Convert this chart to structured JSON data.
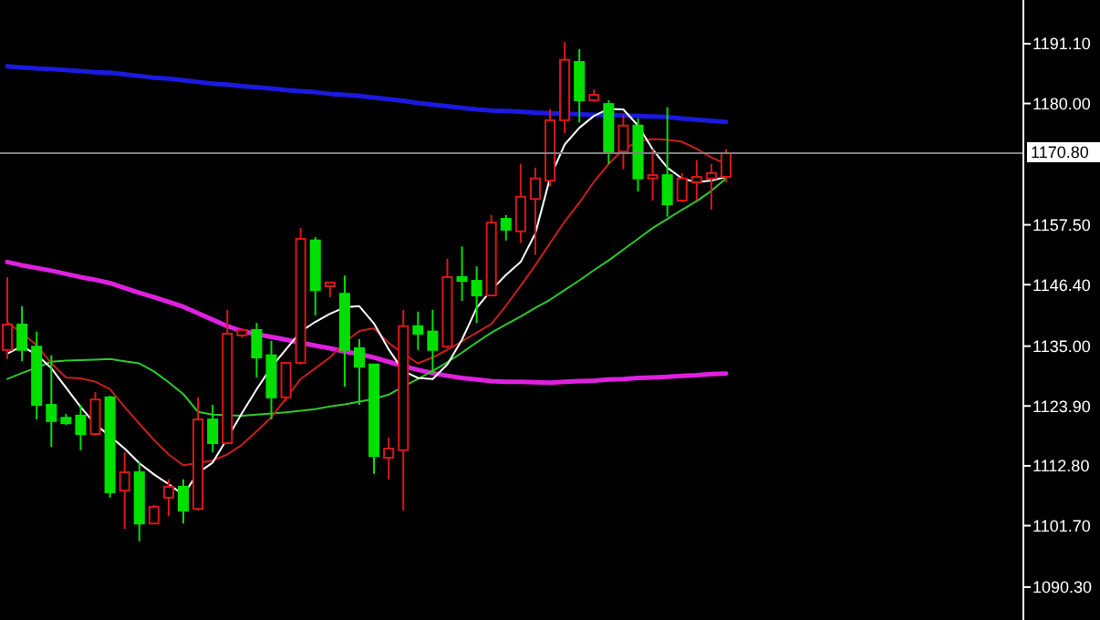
{
  "chart_data": {
    "type": "candlestick",
    "categories": [
      null,
      null,
      null,
      null,
      null,
      null,
      null,
      null,
      null,
      null,
      null,
      null,
      null,
      null,
      null,
      null,
      null,
      null,
      null,
      null,
      null,
      null,
      null,
      null,
      null,
      null,
      null,
      null,
      null,
      null,
      null,
      null,
      null,
      null,
      null,
      null,
      null,
      null,
      null,
      null,
      null,
      null,
      null,
      null,
      null,
      null,
      null,
      null,
      null,
      null
    ],
    "ohlc": [
      [
        1134.3,
        1147.8,
        1132.6,
        1139.0
      ],
      [
        1139.0,
        1142.4,
        1132.2,
        1134.3
      ],
      [
        1134.9,
        1137.7,
        1121.4,
        1124.1
      ],
      [
        1124.1,
        1133.3,
        1116.3,
        1121.1
      ],
      [
        1121.7,
        1122.4,
        1120.4,
        1120.7
      ],
      [
        1122.1,
        1124.1,
        1115.7,
        1118.7
      ],
      [
        1118.7,
        1126.5,
        1118.4,
        1125.1
      ],
      [
        1125.5,
        1125.8,
        1106.9,
        1107.9
      ],
      [
        1108.2,
        1115.3,
        1101.1,
        1111.6
      ],
      [
        1111.6,
        1113.6,
        1098.8,
        1102.1
      ],
      [
        1102.1,
        1105.5,
        1102.1,
        1105.2
      ],
      [
        1106.9,
        1110.3,
        1103.5,
        1108.9
      ],
      [
        1108.9,
        1110.3,
        1102.1,
        1104.5
      ],
      [
        1104.8,
        1125.5,
        1104.5,
        1121.4
      ],
      [
        1121.4,
        1124.1,
        1115.3,
        1117.0
      ],
      [
        1117.0,
        1141.7,
        1117.0,
        1137.3
      ],
      [
        1137.0,
        1138.3,
        1136.6,
        1138.0
      ],
      [
        1138.0,
        1139.3,
        1129.2,
        1132.9
      ],
      [
        1133.3,
        1136.0,
        1121.4,
        1125.5
      ],
      [
        1125.5,
        1131.9,
        1124.8,
        1131.9
      ],
      [
        1131.9,
        1156.9,
        1131.6,
        1154.9
      ],
      [
        1154.6,
        1155.2,
        1140.7,
        1145.4
      ],
      [
        1146.1,
        1146.8,
        1144.1,
        1146.8
      ],
      [
        1144.7,
        1148.1,
        1127.5,
        1134.3
      ],
      [
        1134.6,
        1136.3,
        1124.1,
        1131.2
      ],
      [
        1131.6,
        1131.6,
        1111.3,
        1114.6
      ],
      [
        1114.3,
        1118.0,
        1110.3,
        1116.0
      ],
      [
        1115.7,
        1141.7,
        1104.5,
        1138.7
      ],
      [
        1138.7,
        1141.4,
        1134.3,
        1137.3
      ],
      [
        1137.7,
        1141.7,
        1129.9,
        1134.3
      ],
      [
        1134.9,
        1151.2,
        1134.6,
        1147.8
      ],
      [
        1147.8,
        1153.5,
        1143.4,
        1147.1
      ],
      [
        1147.1,
        1149.8,
        1139.3,
        1144.4
      ],
      [
        1144.4,
        1159.3,
        1144.4,
        1157.9
      ],
      [
        1158.6,
        1159.3,
        1154.6,
        1156.6
      ],
      [
        1156.3,
        1168.8,
        1154.2,
        1162.7
      ],
      [
        1162.3,
        1168.1,
        1151.9,
        1166.1
      ],
      [
        1165.7,
        1178.9,
        1164.7,
        1176.9
      ],
      [
        1176.9,
        1191.4,
        1174.5,
        1188.1
      ],
      [
        1187.7,
        1190.1,
        1176.5,
        1180.6
      ],
      [
        1180.6,
        1182.6,
        1180.3,
        1181.6
      ],
      [
        1179.9,
        1180.6,
        1168.8,
        1170.8
      ],
      [
        1171.1,
        1177.9,
        1167.8,
        1175.9
      ],
      [
        1175.9,
        1177.2,
        1163.7,
        1166.1
      ],
      [
        1166.1,
        1171.5,
        1162.0,
        1166.7
      ],
      [
        1166.7,
        1179.3,
        1159.0,
        1161.3
      ],
      [
        1162.0,
        1167.1,
        1161.7,
        1166.1
      ],
      [
        1165.4,
        1169.5,
        1162.0,
        1166.4
      ],
      [
        1166.1,
        1168.8,
        1160.3,
        1167.1
      ],
      [
        1166.4,
        1171.5,
        1165.4,
        1170.8
      ]
    ],
    "colors": [
      "#d81818",
      "#00e000",
      "#00e000",
      "#00e000",
      "#00e000",
      "#00e000",
      "#d81818",
      "#00e000",
      "#d81818",
      "#00e000",
      "#d81818",
      "#d81818",
      "#00e000",
      "#d81818",
      "#00e000",
      "#d81818",
      "#d81818",
      "#00e000",
      "#00e000",
      "#d81818",
      "#d81818",
      "#00e000",
      "#d81818",
      "#00e000",
      "#00e000",
      "#00e000",
      "#d81818",
      "#d81818",
      "#00e000",
      "#00e000",
      "#d81818",
      "#00e000",
      "#00e000",
      "#d81818",
      "#00e000",
      "#d81818",
      "#d81818",
      "#d81818",
      "#d81818",
      "#00e000",
      "#d81818",
      "#00e000",
      "#d81818",
      "#00e000",
      "#d81818",
      "#00e000",
      "#d81818",
      "#d81818",
      "#d81818",
      "#d81818"
    ],
    "series": [
      {
        "type": "line",
        "color": "#1a1ae0",
        "values": [
          1186.9,
          1186.7,
          1186.5,
          1186.4,
          1186.2,
          1186.0,
          1185.8,
          1185.7,
          1185.4,
          1185.1,
          1184.8,
          1184.6,
          1184.3,
          1184.0,
          1183.7,
          1183.5,
          1183.2,
          1183.0,
          1182.8,
          1182.5,
          1182.3,
          1182.1,
          1181.8,
          1181.6,
          1181.4,
          1181.1,
          1180.8,
          1180.5,
          1180.1,
          1179.8,
          1179.5,
          1179.2,
          1178.9,
          1178.7,
          1178.6,
          1178.5,
          1178.3,
          1178.2,
          1178.1,
          1178.0,
          1177.9,
          1177.9,
          1177.8,
          1177.7,
          1177.6,
          1177.5,
          1177.2,
          1177.0,
          1176.8,
          1176.6
        ]
      },
      {
        "type": "line",
        "color": "#e020e0",
        "values": [
          1150.6,
          1150.0,
          1149.5,
          1149.0,
          1148.4,
          1147.8,
          1147.3,
          1146.7,
          1145.8,
          1144.9,
          1144.1,
          1143.2,
          1142.3,
          1141.1,
          1139.9,
          1138.7,
          1137.8,
          1137.2,
          1136.7,
          1136.2,
          1135.6,
          1135.1,
          1134.6,
          1134.0,
          1133.5,
          1132.9,
          1132.1,
          1131.3,
          1130.6,
          1130.0,
          1129.5,
          1129.1,
          1128.8,
          1128.5,
          1128.4,
          1128.4,
          1128.3,
          1128.2,
          1128.4,
          1128.5,
          1128.6,
          1128.8,
          1128.9,
          1129.1,
          1129.2,
          1129.3,
          1129.5,
          1129.6,
          1129.8,
          1129.9
        ]
      },
      {
        "type": "line",
        "color": "#2ec82e",
        "values": [
          1128.9,
          1130.0,
          1131.0,
          1132.1,
          1132.3,
          1132.4,
          1132.5,
          1132.6,
          1132.2,
          1131.8,
          1130.3,
          1128.3,
          1126.1,
          1122.8,
          1122.3,
          1122.2,
          1122.1,
          1122.3,
          1122.5,
          1122.7,
          1123.0,
          1123.3,
          1123.8,
          1124.2,
          1124.7,
          1125.2,
          1126.0,
          1127.5,
          1128.9,
          1130.4,
          1132.0,
          1133.8,
          1135.7,
          1137.5,
          1139.0,
          1140.5,
          1142.1,
          1143.6,
          1145.4,
          1147.2,
          1149.1,
          1150.9,
          1152.9,
          1154.9,
          1156.9,
          1158.6,
          1160.3,
          1161.9,
          1163.8,
          1166.1
        ]
      },
      {
        "type": "line",
        "color": "#c81e1e",
        "values": [
          1139.4,
          1137.4,
          1135.2,
          1131.8,
          1129.2,
          1129.0,
          1128.4,
          1127.0,
          1123.7,
          1120.6,
          1117.6,
          1114.9,
          1112.9,
          1113.3,
          1113.8,
          1114.9,
          1116.7,
          1119.2,
          1121.8,
          1125.3,
          1128.9,
          1130.9,
          1132.9,
          1135.7,
          1137.8,
          1138.3,
          1135.6,
          1133.6,
          1131.8,
          1132.9,
          1134.3,
          1135.9,
          1137.5,
          1139.1,
          1142.5,
          1146.2,
          1150.0,
          1154.1,
          1158.1,
          1161.6,
          1165.5,
          1168.8,
          1171.5,
          1173.0,
          1173.4,
          1173.3,
          1172.9,
          1171.6,
          1170.0,
          1168.8
        ]
      },
      {
        "type": "line",
        "color": "#ffffff",
        "values": [
          1133.6,
          1135.0,
          1133.4,
          1130.9,
          1127.3,
          1123.7,
          1120.5,
          1118.3,
          1116.0,
          1113.3,
          1111.2,
          1109.4,
          1107.4,
          1111.5,
          1113.4,
          1117.9,
          1122.6,
          1127.0,
          1131.1,
          1134.4,
          1137.7,
          1139.5,
          1141.0,
          1142.2,
          1142.4,
          1139.2,
          1134.4,
          1130.4,
          1129.1,
          1128.9,
          1131.6,
          1136.2,
          1142.1,
          1145.4,
          1148.2,
          1150.6,
          1155.9,
          1166.2,
          1172.4,
          1175.5,
          1177.7,
          1179.0,
          1178.9,
          1175.9,
          1171.5,
          1168.1,
          1166.1,
          1165.4,
          1165.7,
          1166.4
        ]
      }
    ],
    "ylim": [
      1084.2,
      1199.2
    ],
    "yticks": [
      {
        "value": 1191.1,
        "label": "1191.10"
      },
      {
        "value": 1180.0,
        "label": "1180.00"
      },
      {
        "value": 1157.5,
        "label": "1157.50"
      },
      {
        "value": 1146.4,
        "label": "1146.40"
      },
      {
        "value": 1135.0,
        "label": "1135.00"
      },
      {
        "value": 1123.9,
        "label": "1123.90"
      },
      {
        "value": 1112.8,
        "label": "1112.80"
      },
      {
        "value": 1101.7,
        "label": "1101.70"
      },
      {
        "value": 1090.3,
        "label": "1090.30"
      }
    ],
    "ref_lines": [
      {
        "axis": "y",
        "value": 1170.8,
        "label": "1170.80",
        "color": "#808080"
      }
    ],
    "tick_labels": "y",
    "grid": false
  }
}
